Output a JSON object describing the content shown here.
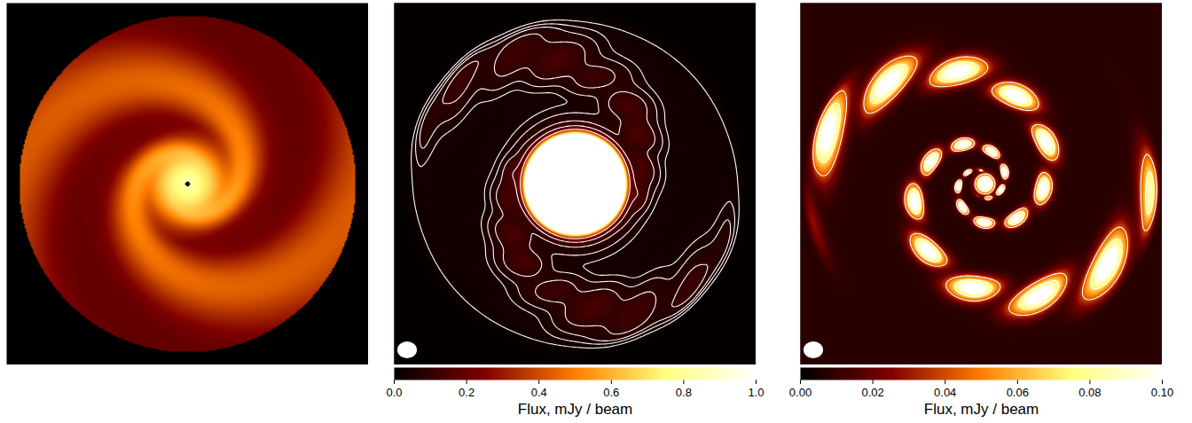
{
  "chart_data": [
    {
      "type": "image"
    },
    {
      "type": "image",
      "contours": [
        0.03,
        0.045,
        0.06,
        0.09,
        0.15,
        0.3
      ],
      "colorbar": {
        "label": "Flux, mJy / beam",
        "range": [
          0,
          1
        ],
        "ticks": [
          {
            "value": 0,
            "label": "0.0"
          },
          0.2,
          0.4,
          0.6,
          0.8,
          {
            "value": 1,
            "label": "1.0"
          }
        ]
      }
    },
    {
      "type": "image",
      "contours": [
        0.04,
        0.07
      ],
      "colorbar": {
        "label": "Flux, mJy / beam",
        "range": [
          0,
          0.1
        ],
        "ticks": [
          {
            "value": 0,
            "label": "0.00"
          },
          0.02,
          0.04,
          0.06,
          0.08,
          {
            "value": 0.1,
            "label": "0.10"
          }
        ]
      }
    }
  ]
}
